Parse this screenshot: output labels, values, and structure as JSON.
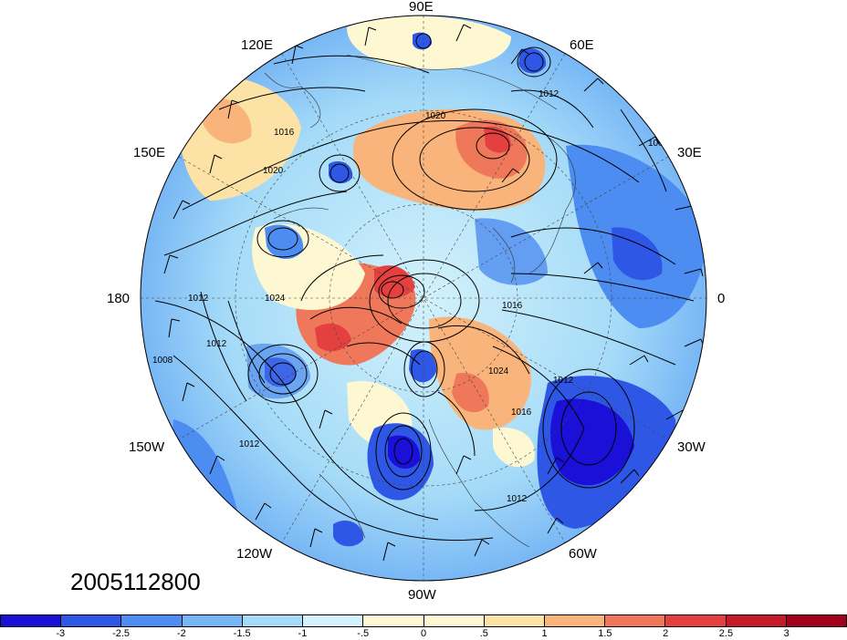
{
  "map": {
    "projection": "north polar stereographic",
    "longitude_labels": {
      "lon_90e": "90E",
      "lon_60e": "60E",
      "lon_120e": "120E",
      "lon_30e": "30E",
      "lon_150e": "150E",
      "lon_180": "180",
      "lon_0": "0",
      "lon_150w": "150W",
      "lon_30w": "30W",
      "lon_120w": "120W",
      "lon_60w": "60W",
      "lon_90w": "90W"
    },
    "pressure_contour_labels": [
      "1012",
      "1016",
      "1020",
      "1008",
      "1024"
    ],
    "date_stamp": "2005112800"
  },
  "colorbar": {
    "tick_labels": [
      "-3",
      "-2.5",
      "-2",
      "-1.5",
      "-1",
      "-.5",
      "0",
      ".5",
      "1",
      "1.5",
      "2",
      "2.5",
      "3"
    ],
    "colors": [
      "#1a10d8",
      "#2f57e6",
      "#4d8cf0",
      "#78b7f5",
      "#a5dbf8",
      "#d3f2fb",
      "#fdf7d2",
      "#fde2a6",
      "#f8b47b",
      "#f0785a",
      "#e54040",
      "#c41a2a",
      "#a3001e"
    ]
  }
}
